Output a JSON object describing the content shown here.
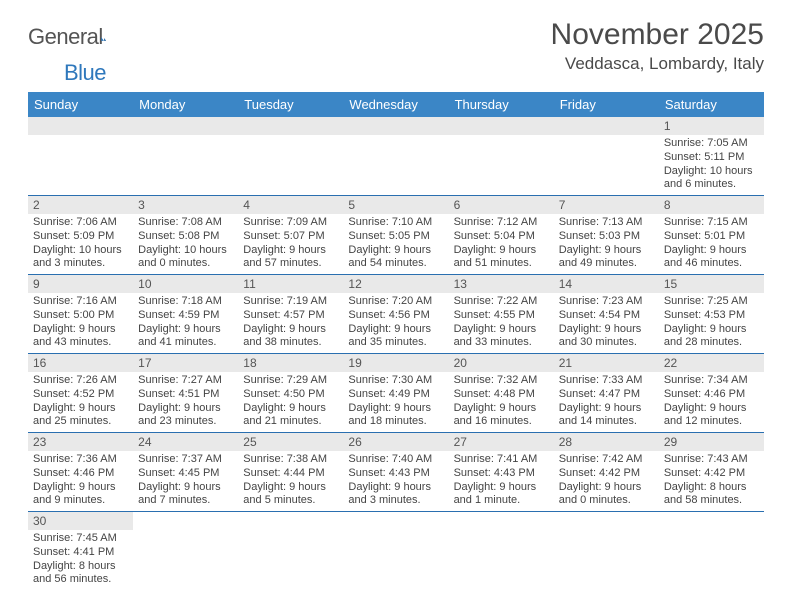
{
  "brand": {
    "part1": "General",
    "part2": "Blue"
  },
  "title": "November 2025",
  "location": "Veddasca, Lombardy, Italy",
  "colors": {
    "header_bg": "#3b86c6",
    "header_text": "#ffffff",
    "daynum_bg": "#e9e9e9",
    "cell_border": "#2a6fb0",
    "brand_gray": "#545454",
    "brand_blue": "#2f78bc"
  },
  "headers": [
    "Sunday",
    "Monday",
    "Tuesday",
    "Wednesday",
    "Thursday",
    "Friday",
    "Saturday"
  ],
  "weeks": [
    [
      {
        "n": "",
        "lines": []
      },
      {
        "n": "",
        "lines": []
      },
      {
        "n": "",
        "lines": []
      },
      {
        "n": "",
        "lines": []
      },
      {
        "n": "",
        "lines": []
      },
      {
        "n": "",
        "lines": []
      },
      {
        "n": "1",
        "lines": [
          "Sunrise: 7:05 AM",
          "Sunset: 5:11 PM",
          "Daylight: 10 hours",
          "and 6 minutes."
        ]
      }
    ],
    [
      {
        "n": "2",
        "lines": [
          "Sunrise: 7:06 AM",
          "Sunset: 5:09 PM",
          "Daylight: 10 hours",
          "and 3 minutes."
        ]
      },
      {
        "n": "3",
        "lines": [
          "Sunrise: 7:08 AM",
          "Sunset: 5:08 PM",
          "Daylight: 10 hours",
          "and 0 minutes."
        ]
      },
      {
        "n": "4",
        "lines": [
          "Sunrise: 7:09 AM",
          "Sunset: 5:07 PM",
          "Daylight: 9 hours",
          "and 57 minutes."
        ]
      },
      {
        "n": "5",
        "lines": [
          "Sunrise: 7:10 AM",
          "Sunset: 5:05 PM",
          "Daylight: 9 hours",
          "and 54 minutes."
        ]
      },
      {
        "n": "6",
        "lines": [
          "Sunrise: 7:12 AM",
          "Sunset: 5:04 PM",
          "Daylight: 9 hours",
          "and 51 minutes."
        ]
      },
      {
        "n": "7",
        "lines": [
          "Sunrise: 7:13 AM",
          "Sunset: 5:03 PM",
          "Daylight: 9 hours",
          "and 49 minutes."
        ]
      },
      {
        "n": "8",
        "lines": [
          "Sunrise: 7:15 AM",
          "Sunset: 5:01 PM",
          "Daylight: 9 hours",
          "and 46 minutes."
        ]
      }
    ],
    [
      {
        "n": "9",
        "lines": [
          "Sunrise: 7:16 AM",
          "Sunset: 5:00 PM",
          "Daylight: 9 hours",
          "and 43 minutes."
        ]
      },
      {
        "n": "10",
        "lines": [
          "Sunrise: 7:18 AM",
          "Sunset: 4:59 PM",
          "Daylight: 9 hours",
          "and 41 minutes."
        ]
      },
      {
        "n": "11",
        "lines": [
          "Sunrise: 7:19 AM",
          "Sunset: 4:57 PM",
          "Daylight: 9 hours",
          "and 38 minutes."
        ]
      },
      {
        "n": "12",
        "lines": [
          "Sunrise: 7:20 AM",
          "Sunset: 4:56 PM",
          "Daylight: 9 hours",
          "and 35 minutes."
        ]
      },
      {
        "n": "13",
        "lines": [
          "Sunrise: 7:22 AM",
          "Sunset: 4:55 PM",
          "Daylight: 9 hours",
          "and 33 minutes."
        ]
      },
      {
        "n": "14",
        "lines": [
          "Sunrise: 7:23 AM",
          "Sunset: 4:54 PM",
          "Daylight: 9 hours",
          "and 30 minutes."
        ]
      },
      {
        "n": "15",
        "lines": [
          "Sunrise: 7:25 AM",
          "Sunset: 4:53 PM",
          "Daylight: 9 hours",
          "and 28 minutes."
        ]
      }
    ],
    [
      {
        "n": "16",
        "lines": [
          "Sunrise: 7:26 AM",
          "Sunset: 4:52 PM",
          "Daylight: 9 hours",
          "and 25 minutes."
        ]
      },
      {
        "n": "17",
        "lines": [
          "Sunrise: 7:27 AM",
          "Sunset: 4:51 PM",
          "Daylight: 9 hours",
          "and 23 minutes."
        ]
      },
      {
        "n": "18",
        "lines": [
          "Sunrise: 7:29 AM",
          "Sunset: 4:50 PM",
          "Daylight: 9 hours",
          "and 21 minutes."
        ]
      },
      {
        "n": "19",
        "lines": [
          "Sunrise: 7:30 AM",
          "Sunset: 4:49 PM",
          "Daylight: 9 hours",
          "and 18 minutes."
        ]
      },
      {
        "n": "20",
        "lines": [
          "Sunrise: 7:32 AM",
          "Sunset: 4:48 PM",
          "Daylight: 9 hours",
          "and 16 minutes."
        ]
      },
      {
        "n": "21",
        "lines": [
          "Sunrise: 7:33 AM",
          "Sunset: 4:47 PM",
          "Daylight: 9 hours",
          "and 14 minutes."
        ]
      },
      {
        "n": "22",
        "lines": [
          "Sunrise: 7:34 AM",
          "Sunset: 4:46 PM",
          "Daylight: 9 hours",
          "and 12 minutes."
        ]
      }
    ],
    [
      {
        "n": "23",
        "lines": [
          "Sunrise: 7:36 AM",
          "Sunset: 4:46 PM",
          "Daylight: 9 hours",
          "and 9 minutes."
        ]
      },
      {
        "n": "24",
        "lines": [
          "Sunrise: 7:37 AM",
          "Sunset: 4:45 PM",
          "Daylight: 9 hours",
          "and 7 minutes."
        ]
      },
      {
        "n": "25",
        "lines": [
          "Sunrise: 7:38 AM",
          "Sunset: 4:44 PM",
          "Daylight: 9 hours",
          "and 5 minutes."
        ]
      },
      {
        "n": "26",
        "lines": [
          "Sunrise: 7:40 AM",
          "Sunset: 4:43 PM",
          "Daylight: 9 hours",
          "and 3 minutes."
        ]
      },
      {
        "n": "27",
        "lines": [
          "Sunrise: 7:41 AM",
          "Sunset: 4:43 PM",
          "Daylight: 9 hours",
          "and 1 minute."
        ]
      },
      {
        "n": "28",
        "lines": [
          "Sunrise: 7:42 AM",
          "Sunset: 4:42 PM",
          "Daylight: 9 hours",
          "and 0 minutes."
        ]
      },
      {
        "n": "29",
        "lines": [
          "Sunrise: 7:43 AM",
          "Sunset: 4:42 PM",
          "Daylight: 8 hours",
          "and 58 minutes."
        ]
      }
    ],
    [
      {
        "n": "30",
        "lines": [
          "Sunrise: 7:45 AM",
          "Sunset: 4:41 PM",
          "Daylight: 8 hours",
          "and 56 minutes."
        ]
      },
      {
        "n": "",
        "lines": []
      },
      {
        "n": "",
        "lines": []
      },
      {
        "n": "",
        "lines": []
      },
      {
        "n": "",
        "lines": []
      },
      {
        "n": "",
        "lines": []
      },
      {
        "n": "",
        "lines": []
      }
    ]
  ]
}
